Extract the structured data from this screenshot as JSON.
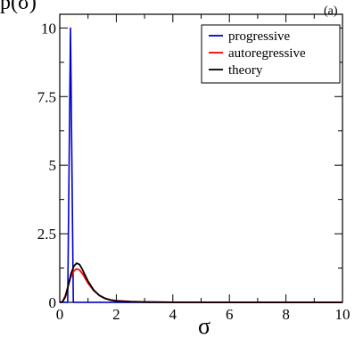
{
  "panel_label": "(a)",
  "chart_data": {
    "type": "line",
    "title": "",
    "xlabel": "σ",
    "ylabel": "p(σ)",
    "xlim": [
      0,
      10
    ],
    "ylim": [
      0,
      10.5
    ],
    "x_ticks": [
      0,
      2,
      4,
      6,
      8,
      10
    ],
    "x_tick_labels": [
      "0",
      "2",
      "4",
      "6",
      "8",
      "10"
    ],
    "y_ticks": [
      0,
      2.5,
      5,
      7.5,
      10
    ],
    "y_tick_labels": [
      "0",
      "2.5",
      "5",
      "7.5",
      "10"
    ],
    "grid": false,
    "legend_position": "top-right",
    "series": [
      {
        "name": "progressive",
        "color": "#0000cc",
        "x": [
          0,
          0.28,
          0.38,
          0.48,
          0.58,
          10
        ],
        "y": [
          0,
          0,
          10,
          0,
          0,
          0
        ]
      },
      {
        "name": "autoregressive",
        "color": "#ff0000",
        "x": [
          0,
          0.1,
          0.2,
          0.3,
          0.4,
          0.5,
          0.6,
          0.7,
          0.8,
          0.9,
          1.0,
          1.2,
          1.4,
          1.6,
          1.8,
          2.0,
          2.5,
          3.0,
          4.0,
          6.0,
          8.0,
          10.0
        ],
        "y": [
          0,
          0.03,
          0.25,
          0.62,
          0.95,
          1.15,
          1.22,
          1.18,
          1.05,
          0.88,
          0.7,
          0.43,
          0.26,
          0.15,
          0.09,
          0.06,
          0.03,
          0.015,
          0.005,
          0,
          0,
          0
        ]
      },
      {
        "name": "theory",
        "color": "#000000",
        "x": [
          0,
          0.1,
          0.2,
          0.3,
          0.4,
          0.5,
          0.6,
          0.7,
          0.8,
          0.9,
          1.0,
          1.2,
          1.4,
          1.6,
          1.8,
          2.0,
          2.5,
          3.0,
          4.0,
          6.0,
          8.0,
          10.0
        ],
        "y": [
          0,
          0.02,
          0.2,
          0.6,
          1.05,
          1.32,
          1.43,
          1.38,
          1.2,
          0.98,
          0.77,
          0.45,
          0.25,
          0.14,
          0.08,
          0.05,
          0.02,
          0.01,
          0.003,
          0,
          0,
          0
        ]
      }
    ]
  }
}
